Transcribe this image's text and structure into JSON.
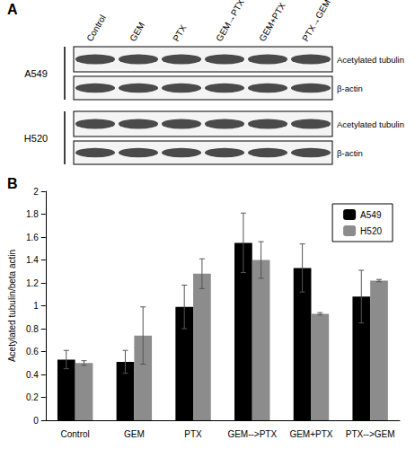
{
  "panel_a": {
    "label": "A",
    "lanes": [
      "Control",
      "GEM",
      "PTX",
      "GEM→PTX",
      "GEM+PTX",
      "PTX→GEM"
    ],
    "blots": [
      {
        "cell_line": "A549",
        "rows": [
          "Acetylated tubulin",
          "β-actin"
        ]
      },
      {
        "cell_line": "H520",
        "rows": [
          "Acetylated tubulin",
          "β-actin"
        ]
      }
    ]
  },
  "panel_b_label": "B",
  "chart_data": {
    "type": "bar",
    "categories": [
      "Control",
      "GEM",
      "PTX",
      "GEM-->PTX",
      "GEM+PTX",
      "PTX-->GEM"
    ],
    "series": [
      {
        "name": "A549",
        "color": "#000000",
        "values": [
          0.53,
          0.51,
          0.99,
          1.55,
          1.33,
          1.08
        ],
        "errors": [
          0.08,
          0.1,
          0.19,
          0.26,
          0.21,
          0.23
        ]
      },
      {
        "name": "H520",
        "color": "#8c8c8c",
        "values": [
          0.5,
          0.74,
          1.28,
          1.4,
          0.93,
          1.22
        ],
        "errors": [
          0.02,
          0.25,
          0.13,
          0.16,
          0.01,
          0.01
        ]
      }
    ],
    "y_label": "Acetylated tubulin/beta actin",
    "ylim": [
      0,
      2
    ],
    "yticks": [
      0,
      0.2,
      0.4,
      0.6,
      0.8,
      1,
      1.2,
      1.4,
      1.6,
      1.8,
      2
    ],
    "grid": false,
    "legend": "upper right"
  }
}
